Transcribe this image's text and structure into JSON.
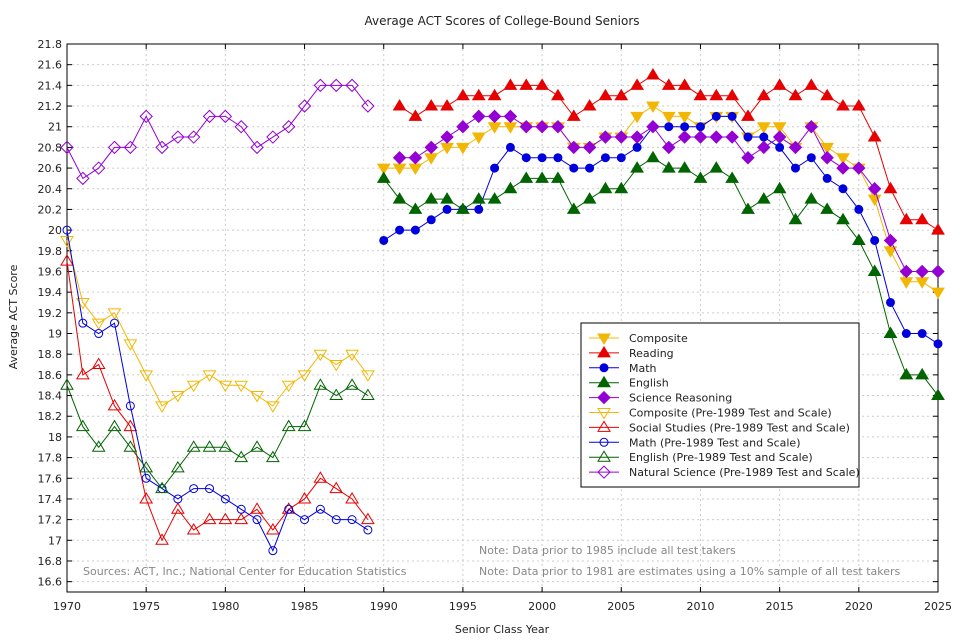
{
  "chart_data": {
    "type": "line",
    "title": "Average ACT Scores of College-Bound Seniors",
    "xlabel": "Senior Class Year",
    "ylabel": "Average ACT Score",
    "xlim": [
      1970,
      2025
    ],
    "ylim": [
      16.5,
      21.8
    ],
    "xticks": [
      "1970",
      "1975",
      "1980",
      "1985",
      "1990",
      "1995",
      "2000",
      "2005",
      "2010",
      "2015",
      "2020",
      "2025"
    ],
    "yticks": [
      "16.6",
      "16.8",
      "17",
      "17.2",
      "17.4",
      "17.6",
      "17.8",
      "18",
      "18.2",
      "18.4",
      "18.6",
      "18.8",
      "19",
      "19.2",
      "19.4",
      "19.6",
      "19.8",
      "20",
      "20.2",
      "20.4",
      "20.6",
      "20.8",
      "21",
      "21.2",
      "21.4",
      "21.6",
      "21.8"
    ],
    "grid": true,
    "legend_position": "center-right",
    "series": [
      {
        "name": "Composite",
        "color": "#f2b705",
        "marker": "triangle-down",
        "filled": true,
        "x": [
          1990,
          1991,
          1992,
          1993,
          1994,
          1995,
          1996,
          1997,
          1998,
          1999,
          2000,
          2001,
          2002,
          2003,
          2004,
          2005,
          2006,
          2007,
          2008,
          2009,
          2010,
          2011,
          2012,
          2013,
          2014,
          2015,
          2016,
          2017,
          2018,
          2019,
          2020,
          2021,
          2022,
          2023,
          2024,
          2025
        ],
        "values": [
          20.6,
          20.6,
          20.6,
          20.7,
          20.8,
          20.8,
          20.9,
          21.0,
          21.0,
          21.0,
          21.0,
          21.0,
          20.8,
          20.8,
          20.9,
          20.9,
          21.1,
          21.2,
          21.1,
          21.1,
          21.0,
          21.1,
          21.1,
          20.9,
          21.0,
          21.0,
          20.8,
          21.0,
          20.8,
          20.7,
          20.6,
          20.3,
          19.8,
          19.5,
          19.5,
          19.4
        ]
      },
      {
        "name": "Reading",
        "color": "#e60000",
        "marker": "triangle-up",
        "filled": true,
        "x": [
          1991,
          1992,
          1993,
          1994,
          1995,
          1996,
          1997,
          1998,
          1999,
          2000,
          2001,
          2002,
          2003,
          2004,
          2005,
          2006,
          2007,
          2008,
          2009,
          2010,
          2011,
          2012,
          2013,
          2014,
          2015,
          2016,
          2017,
          2018,
          2019,
          2020,
          2021,
          2022,
          2023,
          2024,
          2025
        ],
        "values": [
          21.2,
          21.1,
          21.2,
          21.2,
          21.3,
          21.3,
          21.3,
          21.4,
          21.4,
          21.4,
          21.3,
          21.1,
          21.2,
          21.3,
          21.3,
          21.4,
          21.5,
          21.4,
          21.4,
          21.3,
          21.3,
          21.3,
          21.1,
          21.3,
          21.4,
          21.3,
          21.4,
          21.3,
          21.2,
          21.2,
          20.9,
          20.4,
          20.1,
          20.1,
          20.0
        ]
      },
      {
        "name": "Math",
        "color": "#0000dd",
        "marker": "circle",
        "filled": true,
        "x": [
          1990,
          1991,
          1992,
          1993,
          1994,
          1995,
          1996,
          1997,
          1998,
          1999,
          2000,
          2001,
          2002,
          2003,
          2004,
          2005,
          2006,
          2007,
          2008,
          2009,
          2010,
          2011,
          2012,
          2013,
          2014,
          2015,
          2016,
          2017,
          2018,
          2019,
          2020,
          2021,
          2022,
          2023,
          2024,
          2025
        ],
        "values": [
          19.9,
          20.0,
          20.0,
          20.1,
          20.2,
          20.2,
          20.2,
          20.6,
          20.8,
          20.7,
          20.7,
          20.7,
          20.6,
          20.6,
          20.7,
          20.7,
          20.8,
          21.0,
          21.0,
          21.0,
          21.0,
          21.1,
          21.1,
          20.9,
          20.9,
          20.8,
          20.6,
          20.7,
          20.5,
          20.4,
          20.2,
          19.9,
          19.3,
          19.0,
          19.0,
          18.9
        ]
      },
      {
        "name": "English",
        "color": "#006400",
        "marker": "triangle-up",
        "filled": true,
        "x": [
          1990,
          1991,
          1992,
          1993,
          1994,
          1995,
          1996,
          1997,
          1998,
          1999,
          2000,
          2001,
          2002,
          2003,
          2004,
          2005,
          2006,
          2007,
          2008,
          2009,
          2010,
          2011,
          2012,
          2013,
          2014,
          2015,
          2016,
          2017,
          2018,
          2019,
          2020,
          2021,
          2022,
          2023,
          2024,
          2025
        ],
        "values": [
          20.5,
          20.3,
          20.2,
          20.3,
          20.3,
          20.2,
          20.3,
          20.3,
          20.4,
          20.5,
          20.5,
          20.5,
          20.2,
          20.3,
          20.4,
          20.4,
          20.6,
          20.7,
          20.6,
          20.6,
          20.5,
          20.6,
          20.5,
          20.2,
          20.3,
          20.4,
          20.1,
          20.3,
          20.2,
          20.1,
          19.9,
          19.6,
          19.0,
          18.6,
          18.6,
          18.4
        ]
      },
      {
        "name": "Science Reasoning",
        "color": "#9400d3",
        "marker": "diamond",
        "filled": true,
        "x": [
          1991,
          1992,
          1993,
          1994,
          1995,
          1996,
          1997,
          1998,
          1999,
          2000,
          2001,
          2002,
          2003,
          2004,
          2005,
          2006,
          2007,
          2008,
          2009,
          2010,
          2011,
          2012,
          2013,
          2014,
          2015,
          2016,
          2017,
          2018,
          2019,
          2020,
          2021,
          2022,
          2023,
          2024,
          2025
        ],
        "values": [
          20.7,
          20.7,
          20.8,
          20.9,
          21.0,
          21.1,
          21.1,
          21.1,
          21.0,
          21.0,
          21.0,
          20.8,
          20.8,
          20.9,
          20.9,
          20.9,
          21.0,
          20.8,
          20.9,
          20.9,
          20.9,
          20.9,
          20.7,
          20.8,
          20.9,
          20.8,
          21.0,
          20.7,
          20.6,
          20.6,
          20.4,
          19.9,
          19.6,
          19.6,
          19.6
        ]
      },
      {
        "name": "Composite (Pre-1989 Test and Scale)",
        "color": "#f2b705",
        "marker": "triangle-down",
        "filled": false,
        "x": [
          1970,
          1971,
          1972,
          1973,
          1974,
          1975,
          1976,
          1977,
          1978,
          1979,
          1980,
          1981,
          1982,
          1983,
          1984,
          1985,
          1986,
          1987,
          1988,
          1989
        ],
        "values": [
          19.9,
          19.3,
          19.1,
          19.2,
          18.9,
          18.6,
          18.3,
          18.4,
          18.5,
          18.6,
          18.5,
          18.5,
          18.4,
          18.3,
          18.5,
          18.6,
          18.8,
          18.7,
          18.8,
          18.6
        ]
      },
      {
        "name": "Social Studies (Pre-1989 Test and Scale)",
        "color": "#e60000",
        "marker": "triangle-up",
        "filled": false,
        "x": [
          1970,
          1971,
          1972,
          1973,
          1974,
          1975,
          1976,
          1977,
          1978,
          1979,
          1980,
          1981,
          1982,
          1983,
          1984,
          1985,
          1986,
          1987,
          1988,
          1989
        ],
        "values": [
          19.7,
          18.6,
          18.7,
          18.3,
          18.1,
          17.4,
          17.0,
          17.3,
          17.1,
          17.2,
          17.2,
          17.2,
          17.3,
          17.1,
          17.3,
          17.4,
          17.6,
          17.5,
          17.4,
          17.2
        ]
      },
      {
        "name": "Math (Pre-1989 Test and Scale)",
        "color": "#0000dd",
        "marker": "circle",
        "filled": false,
        "x": [
          1970,
          1971,
          1972,
          1973,
          1974,
          1975,
          1976,
          1977,
          1978,
          1979,
          1980,
          1981,
          1982,
          1983,
          1984,
          1985,
          1986,
          1987,
          1988,
          1989
        ],
        "values": [
          20.0,
          19.1,
          19.0,
          19.1,
          18.3,
          17.6,
          17.5,
          17.4,
          17.5,
          17.5,
          17.4,
          17.3,
          17.2,
          16.9,
          17.3,
          17.2,
          17.3,
          17.2,
          17.2,
          17.1
        ]
      },
      {
        "name": "English (Pre-1989 Test and Scale)",
        "color": "#006400",
        "marker": "triangle-up",
        "filled": false,
        "x": [
          1970,
          1971,
          1972,
          1973,
          1974,
          1975,
          1976,
          1977,
          1978,
          1979,
          1980,
          1981,
          1982,
          1983,
          1984,
          1985,
          1986,
          1987,
          1988,
          1989
        ],
        "values": [
          18.5,
          18.1,
          17.9,
          18.1,
          17.9,
          17.7,
          17.5,
          17.7,
          17.9,
          17.9,
          17.9,
          17.8,
          17.9,
          17.8,
          18.1,
          18.1,
          18.5,
          18.4,
          18.5,
          18.4
        ]
      },
      {
        "name": "Natural Science (Pre-1989 Test and Scale)",
        "color": "#9400d3",
        "marker": "diamond",
        "filled": false,
        "x": [
          1970,
          1971,
          1972,
          1973,
          1974,
          1975,
          1976,
          1977,
          1978,
          1979,
          1980,
          1981,
          1982,
          1983,
          1984,
          1985,
          1986,
          1987,
          1988,
          1989
        ],
        "values": [
          20.8,
          20.5,
          20.6,
          20.8,
          20.8,
          21.1,
          20.8,
          20.9,
          20.9,
          21.1,
          21.1,
          21.0,
          20.8,
          20.9,
          21.0,
          21.2,
          21.4,
          21.4,
          21.4,
          21.2
        ]
      }
    ],
    "annotations": {
      "sources": "Sources: ACT, Inc.; National Center for Education Statistics",
      "note1": "Note: Data prior to 1985 include all test takers",
      "note2": "Note: Data prior to 1981 are estimates using a 10% sample of all test takers"
    }
  }
}
